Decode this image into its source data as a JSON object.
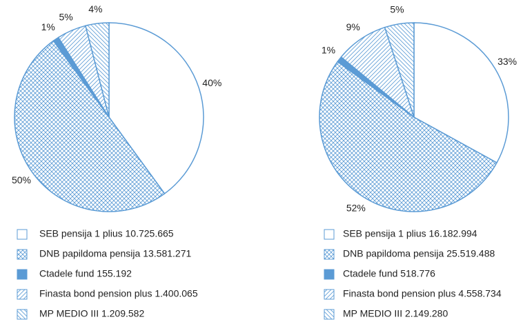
{
  "chart_data": [
    {
      "type": "pie",
      "categories": [
        "SEB pensija 1 plius 10.725.665",
        "DNB papildoma pensija 13.581.271",
        "Ctadele fund 155.192",
        "Finasta bond pension  plus 1.400.065",
        "MP MEDIO III 1.209.582"
      ],
      "values": [
        40,
        50,
        1,
        5,
        4
      ],
      "value_labels": [
        "40%",
        "50%",
        "1%",
        "5%",
        "4%"
      ],
      "color": "#5b9bd5",
      "patterns": [
        "none",
        "cross",
        "solid",
        "diagonal",
        "back-diagonal"
      ]
    },
    {
      "type": "pie",
      "categories": [
        "SEB pensija 1 plius 16.182.994",
        "DNB papildoma pensija 25.519.488",
        "Ctadele fund 518.776",
        "Finasta bond pension plus 4.558.734",
        "MP MEDIO III 2.149.280"
      ],
      "values": [
        33,
        52,
        1,
        9,
        5
      ],
      "value_labels": [
        "33%",
        "52%",
        "1%",
        "9%",
        "5%"
      ],
      "color": "#5b9bd5",
      "patterns": [
        "none",
        "cross",
        "solid",
        "diagonal",
        "back-diagonal"
      ]
    }
  ]
}
